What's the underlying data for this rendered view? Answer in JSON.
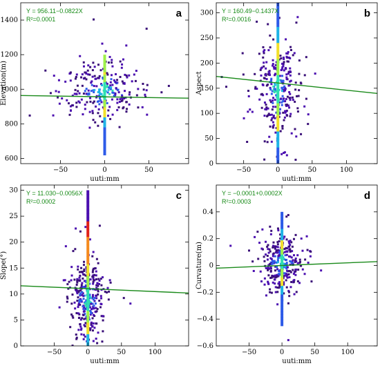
{
  "chart_data": [
    {
      "panel": "a",
      "type": "scatter",
      "equation": "Y = 956.11−0.0822X",
      "r2": "R²=0.0001",
      "xlabel": "uuti:mm",
      "ylabel": "Elevation(m)",
      "xlim": [
        -95,
        95
      ],
      "ylim": [
        570,
        1500
      ],
      "xticks": [
        -50,
        0,
        50
      ],
      "yticks": [
        600,
        800,
        1000,
        1200,
        1400
      ],
      "fit": {
        "intercept": 956.11,
        "slope": -0.0822
      },
      "vertical_band": {
        "x": 0,
        "y_from": 620,
        "y_to": 1200
      },
      "cloud": {
        "x_center": 0,
        "x_spread": 22,
        "y_center": 990,
        "y_spread": 85,
        "count": 260
      }
    },
    {
      "panel": "b",
      "type": "scatter",
      "equation": "Y = 160.49−0.1437X",
      "r2": "R²=0.0016",
      "xlabel": "uuti:mm",
      "ylabel": "Aspect",
      "xlim": [
        -90,
        145
      ],
      "ylim": [
        0,
        320
      ],
      "xticks": [
        -50,
        0,
        50,
        100
      ],
      "yticks": [
        0,
        50,
        100,
        150,
        200,
        250,
        300
      ],
      "fit": {
        "intercept": 160.49,
        "slope": -0.1437
      },
      "vertical_band": {
        "x": 0,
        "y_from": 0,
        "y_to": 320
      },
      "cloud": {
        "x_center": 0,
        "x_spread": 14,
        "y_center": 150,
        "y_spread": 50,
        "count": 300
      }
    },
    {
      "panel": "c",
      "type": "scatter",
      "equation": "Y = 11.030−0.0056X",
      "r2": "R²=0.0002",
      "xlabel": "uuti:mm",
      "ylabel": "Slope(°)",
      "xlim": [
        -100,
        150
      ],
      "ylim": [
        0,
        31
      ],
      "xticks": [
        -50,
        0,
        50,
        100
      ],
      "yticks": [
        0,
        5,
        10,
        15,
        20,
        25,
        30
      ],
      "fit": {
        "intercept": 11.03,
        "slope": -0.0056
      },
      "vertical_band": {
        "x": 0,
        "y_from": 0,
        "y_to": 30
      },
      "cloud": {
        "x_center": 0,
        "x_spread": 12,
        "y_center": 9,
        "y_spread": 4,
        "count": 320
      }
    },
    {
      "panel": "d",
      "type": "scatter",
      "equation": "Y = −0.0001+0.0002X",
      "r2": "R²=0.0003",
      "xlabel": "uuti:mm",
      "ylabel": "Curvature(m)",
      "xlim": [
        -100,
        145
      ],
      "ylim": [
        -0.6,
        0.6
      ],
      "xticks": [
        -50,
        0,
        50,
        100
      ],
      "yticks": [
        -0.6,
        -0.4,
        -0.2,
        0,
        0.2,
        0.4
      ],
      "fit": {
        "intercept": -0.0001,
        "slope": 0.0002
      },
      "vertical_band": {
        "x": 0,
        "y_from": -0.45,
        "y_to": 0.4
      },
      "cloud": {
        "x_center": 0,
        "x_spread": 15,
        "y_center": 0.02,
        "y_spread": 0.1,
        "count": 320
      }
    }
  ],
  "colors": {
    "fit_line": "#1a8a1a",
    "equation_text": "#168a16",
    "density": [
      "#3a1078",
      "#4b0fb0",
      "#2d5be8",
      "#1fb3e6",
      "#2fe0b0",
      "#9ef04a",
      "#f2e02a",
      "#f58a1e",
      "#e0201a"
    ]
  }
}
